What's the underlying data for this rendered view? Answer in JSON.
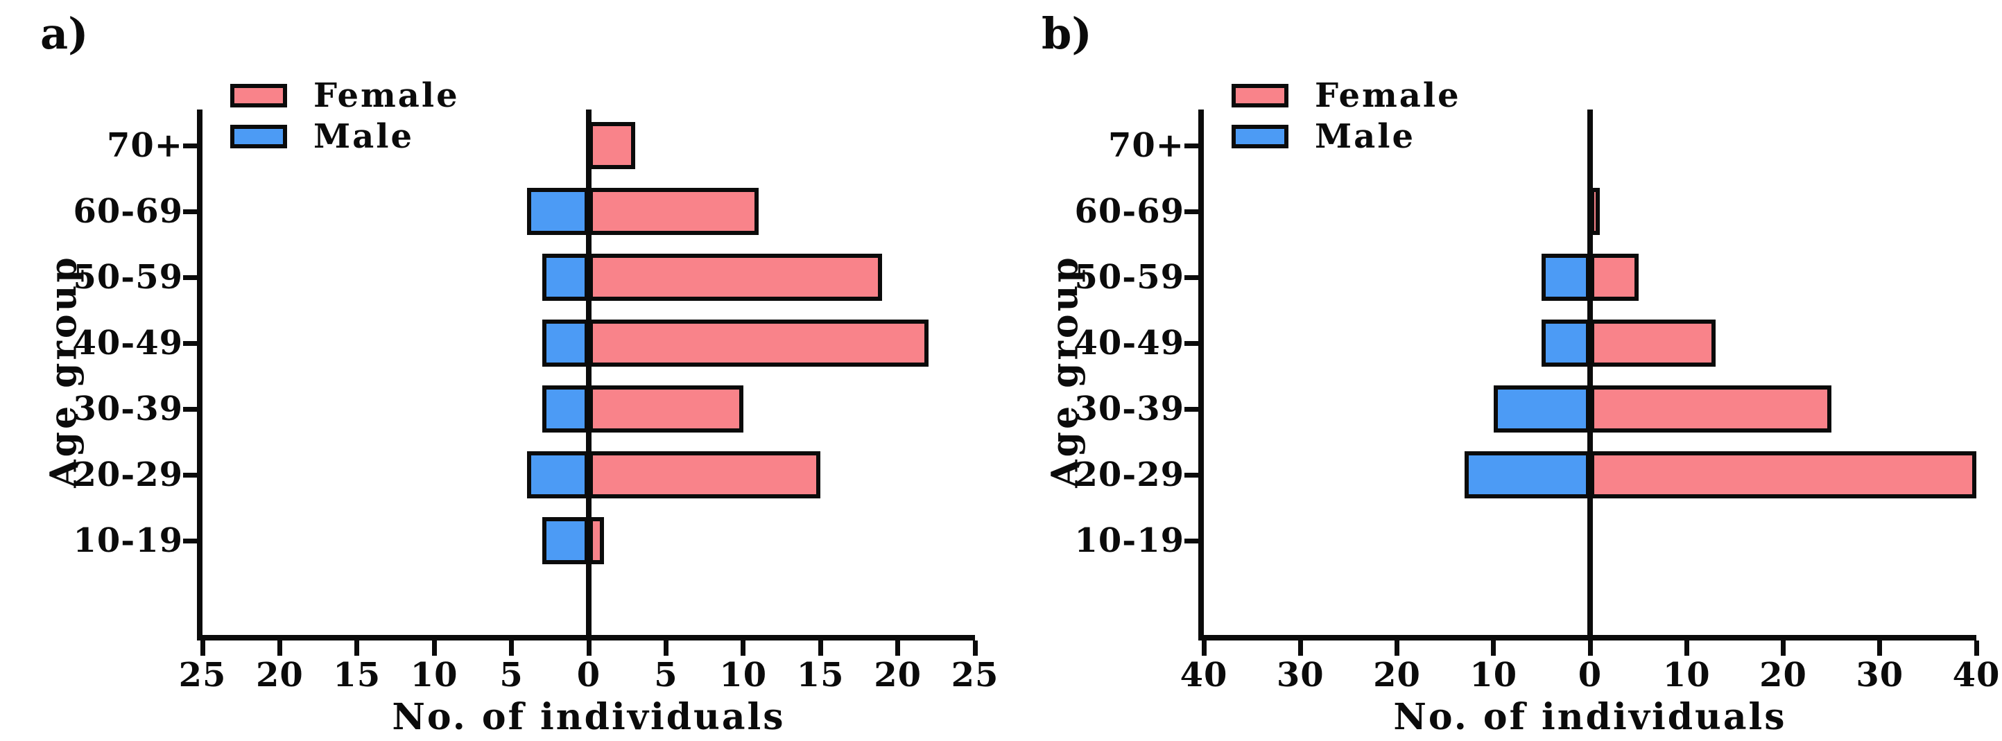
{
  "colors": {
    "female": "#F9838A",
    "male": "#4C9BF5",
    "ink": "#0B0B0B",
    "background": "#FFFFFF"
  },
  "chart_data": [
    {
      "type": "bar",
      "orientation": "horizontal",
      "panel_label": "a)",
      "categories": [
        "70+",
        "60-69",
        "50-59",
        "40-49",
        "30-39",
        "20-29",
        "10-19"
      ],
      "series": [
        {
          "name": "Female",
          "side": "right",
          "color": "#F9838A",
          "values": [
            3,
            11,
            19,
            22,
            10,
            15,
            1
          ]
        },
        {
          "name": "Male",
          "side": "left",
          "color": "#4C9BF5",
          "values": [
            0,
            4,
            3,
            3,
            3,
            4,
            3
          ]
        }
      ],
      "xlabel": "No. of individuals",
      "ylabel": "Age group",
      "xlim": [
        -25,
        25
      ],
      "xtick_step": 5,
      "xtick_labels": [
        "25",
        "20",
        "15",
        "10",
        "5",
        "0",
        "5",
        "10",
        "15",
        "20",
        "25"
      ],
      "legend_position": "top-left-inside",
      "grid": false
    },
    {
      "type": "bar",
      "orientation": "horizontal",
      "panel_label": "b)",
      "categories": [
        "70+",
        "60-69",
        "50-59",
        "40-49",
        "30-39",
        "20-29",
        "10-19"
      ],
      "series": [
        {
          "name": "Female",
          "side": "right",
          "color": "#F9838A",
          "values": [
            0,
            1,
            5,
            13,
            25,
            40,
            0
          ]
        },
        {
          "name": "Male",
          "side": "left",
          "color": "#4C9BF5",
          "values": [
            0,
            0,
            5,
            5,
            10,
            13,
            0
          ]
        }
      ],
      "xlabel": "No. of individuals",
      "ylabel": "Age group",
      "xlim": [
        -40,
        40
      ],
      "xtick_step": 10,
      "xtick_labels": [
        "40",
        "30",
        "20",
        "10",
        "0",
        "10",
        "20",
        "30",
        "40"
      ],
      "legend_position": "top-left-inside",
      "grid": false
    }
  ]
}
